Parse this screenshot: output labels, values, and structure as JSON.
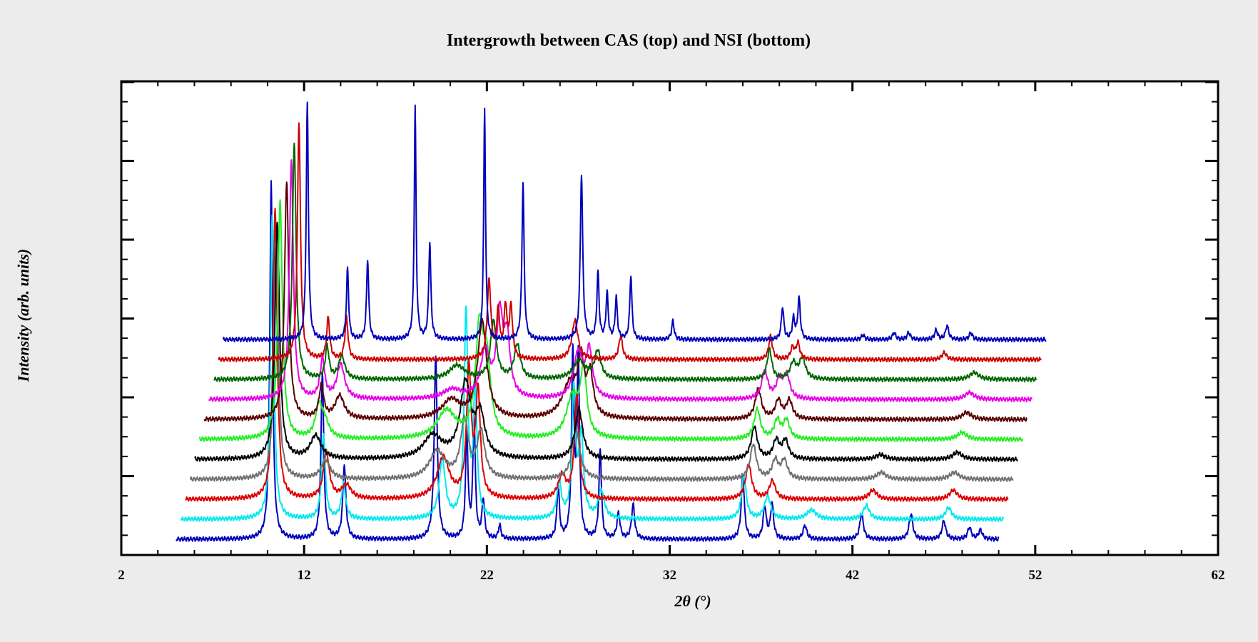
{
  "chart_data": {
    "type": "line",
    "title": "Intergrowth between CAS (top) and NSI (bottom)",
    "xlabel": "2θ (°)",
    "ylabel": "Intensity (arb. units)",
    "xlim": [
      2,
      62
    ],
    "xticks": [
      2,
      12,
      22,
      32,
      42,
      52,
      62
    ],
    "xtick_labels": [
      "2",
      "12",
      "22",
      "32",
      "42",
      "52",
      "62"
    ],
    "y_tick_labels_shown": false,
    "grid": false,
    "legend": "none",
    "plot_style": "stacked patterns, each offset upward and shifted right",
    "pattern_range_2theta": [
      5,
      50
    ],
    "series": [
      {
        "color": "#0000bb",
        "offset": 0,
        "x_shift": 0,
        "peaks": [
          {
            "x": 10.2,
            "h": 1.55,
            "w": 0.09
          },
          {
            "x": 13.0,
            "h": 0.73,
            "w": 0.09
          },
          {
            "x": 14.2,
            "h": 0.32,
            "w": 0.1
          },
          {
            "x": 19.2,
            "h": 0.79,
            "w": 0.1
          },
          {
            "x": 20.9,
            "h": 0.47,
            "w": 0.08
          },
          {
            "x": 21.3,
            "h": 0.52,
            "w": 0.08
          },
          {
            "x": 21.8,
            "h": 0.17,
            "w": 0.08
          },
          {
            "x": 22.7,
            "h": 0.06,
            "w": 0.08
          },
          {
            "x": 25.9,
            "h": 0.23,
            "w": 0.08
          },
          {
            "x": 26.7,
            "h": 0.8,
            "w": 0.08
          },
          {
            "x": 27.0,
            "h": 0.78,
            "w": 0.08
          },
          {
            "x": 28.2,
            "h": 0.39,
            "w": 0.08
          },
          {
            "x": 29.2,
            "h": 0.11,
            "w": 0.1
          },
          {
            "x": 30.0,
            "h": 0.15,
            "w": 0.1
          },
          {
            "x": 36.0,
            "h": 0.28,
            "w": 0.1
          },
          {
            "x": 37.2,
            "h": 0.14,
            "w": 0.1
          },
          {
            "x": 37.6,
            "h": 0.15,
            "w": 0.1
          },
          {
            "x": 39.4,
            "h": 0.06,
            "w": 0.12
          },
          {
            "x": 42.5,
            "h": 0.11,
            "w": 0.12
          },
          {
            "x": 45.2,
            "h": 0.11,
            "w": 0.12
          },
          {
            "x": 47.0,
            "h": 0.08,
            "w": 0.12
          },
          {
            "x": 48.4,
            "h": 0.05,
            "w": 0.12
          },
          {
            "x": 49.0,
            "h": 0.04,
            "w": 0.12
          }
        ]
      },
      {
        "color": "#00e8f0",
        "offset": 0.25,
        "x_shift": 0.5,
        "peaks": [
          {
            "x": 10.0,
            "h": 1.32,
            "w": 0.11
          },
          {
            "x": 12.8,
            "h": 0.37,
            "w": 0.12
          },
          {
            "x": 13.9,
            "h": 0.15,
            "w": 0.14
          },
          {
            "x": 19.3,
            "h": 0.26,
            "w": 0.2
          },
          {
            "x": 20.6,
            "h": 0.9,
            "w": 0.12
          },
          {
            "x": 21.1,
            "h": 0.55,
            "w": 0.12
          },
          {
            "x": 25.7,
            "h": 0.15,
            "w": 0.15
          },
          {
            "x": 26.5,
            "h": 0.55,
            "w": 0.12
          },
          {
            "x": 26.9,
            "h": 0.35,
            "w": 0.15
          },
          {
            "x": 28.0,
            "h": 0.12,
            "w": 0.2
          },
          {
            "x": 35.8,
            "h": 0.19,
            "w": 0.15
          },
          {
            "x": 37.1,
            "h": 0.1,
            "w": 0.2
          },
          {
            "x": 39.5,
            "h": 0.04,
            "w": 0.3
          },
          {
            "x": 42.5,
            "h": 0.06,
            "w": 0.2
          },
          {
            "x": 47.0,
            "h": 0.05,
            "w": 0.2
          }
        ]
      },
      {
        "color": "#dd0000",
        "offset": 0.5,
        "x_shift": 1.0,
        "peaks": [
          {
            "x": 9.9,
            "h": 1.27,
            "w": 0.13
          },
          {
            "x": 12.7,
            "h": 0.2,
            "w": 0.2
          },
          {
            "x": 13.8,
            "h": 0.06,
            "w": 0.3
          },
          {
            "x": 19.1,
            "h": 0.18,
            "w": 0.4
          },
          {
            "x": 20.5,
            "h": 0.55,
            "w": 0.15
          },
          {
            "x": 21.0,
            "h": 0.45,
            "w": 0.15
          },
          {
            "x": 25.6,
            "h": 0.1,
            "w": 0.25
          },
          {
            "x": 26.4,
            "h": 0.45,
            "w": 0.15
          },
          {
            "x": 35.8,
            "h": 0.15,
            "w": 0.2
          },
          {
            "x": 37.1,
            "h": 0.08,
            "w": 0.2
          },
          {
            "x": 42.6,
            "h": 0.04,
            "w": 0.25
          },
          {
            "x": 47.0,
            "h": 0.04,
            "w": 0.25
          }
        ]
      },
      {
        "color": "#707070",
        "offset": 0.75,
        "x_shift": 1.5,
        "peaks": [
          {
            "x": 9.7,
            "h": 1.03,
            "w": 0.14
          },
          {
            "x": 12.4,
            "h": 0.08,
            "w": 0.3
          },
          {
            "x": 18.5,
            "h": 0.12,
            "w": 0.5
          },
          {
            "x": 20.0,
            "h": 0.25,
            "w": 0.25
          },
          {
            "x": 20.9,
            "h": 0.2,
            "w": 0.25
          },
          {
            "x": 26.1,
            "h": 0.22,
            "w": 0.25
          },
          {
            "x": 35.8,
            "h": 0.15,
            "w": 0.2
          },
          {
            "x": 37.0,
            "h": 0.08,
            "w": 0.2
          },
          {
            "x": 37.5,
            "h": 0.08,
            "w": 0.2
          },
          {
            "x": 42.8,
            "h": 0.03,
            "w": 0.3
          },
          {
            "x": 46.8,
            "h": 0.03,
            "w": 0.3
          }
        ]
      },
      {
        "color": "#000000",
        "offset": 1.0,
        "x_shift": 2.0,
        "peaks": [
          {
            "x": 9.5,
            "h": 1.03,
            "w": 0.15
          },
          {
            "x": 11.6,
            "h": 0.1,
            "w": 0.35
          },
          {
            "x": 18.0,
            "h": 0.1,
            "w": 0.6
          },
          {
            "x": 19.8,
            "h": 0.32,
            "w": 0.35
          },
          {
            "x": 20.6,
            "h": 0.18,
            "w": 0.3
          },
          {
            "x": 26.0,
            "h": 0.22,
            "w": 0.25
          },
          {
            "x": 35.6,
            "h": 0.14,
            "w": 0.2
          },
          {
            "x": 36.8,
            "h": 0.08,
            "w": 0.2
          },
          {
            "x": 37.3,
            "h": 0.08,
            "w": 0.2
          },
          {
            "x": 42.5,
            "h": 0.02,
            "w": 0.3
          },
          {
            "x": 46.7,
            "h": 0.03,
            "w": 0.3
          }
        ]
      },
      {
        "color": "#22ee22",
        "offset": 1.25,
        "x_shift": 2.5,
        "peaks": [
          {
            "x": 9.4,
            "h": 1.03,
            "w": 0.15
          },
          {
            "x": 11.5,
            "h": 0.12,
            "w": 0.2
          },
          {
            "x": 11.8,
            "h": 0.08,
            "w": 0.3
          },
          {
            "x": 18.5,
            "h": 0.12,
            "w": 0.6
          },
          {
            "x": 20.3,
            "h": 0.45,
            "w": 0.25
          },
          {
            "x": 20.7,
            "h": 0.3,
            "w": 0.25
          },
          {
            "x": 25.4,
            "h": 0.18,
            "w": 0.4
          },
          {
            "x": 26.0,
            "h": 0.28,
            "w": 0.2
          },
          {
            "x": 35.5,
            "h": 0.13,
            "w": 0.2
          },
          {
            "x": 36.6,
            "h": 0.08,
            "w": 0.2
          },
          {
            "x": 37.1,
            "h": 0.08,
            "w": 0.2
          },
          {
            "x": 46.7,
            "h": 0.03,
            "w": 0.3
          }
        ]
      },
      {
        "color": "#5a0000",
        "offset": 1.5,
        "x_shift": 3.0,
        "peaks": [
          {
            "x": 9.5,
            "h": 1.03,
            "w": 0.14
          },
          {
            "x": 11.4,
            "h": 0.14,
            "w": 0.15
          },
          {
            "x": 12.4,
            "h": 0.1,
            "w": 0.3
          },
          {
            "x": 18.5,
            "h": 0.08,
            "w": 0.6
          },
          {
            "x": 20.2,
            "h": 0.42,
            "w": 0.3
          },
          {
            "x": 25.0,
            "h": 0.15,
            "w": 0.5
          },
          {
            "x": 25.6,
            "h": 0.22,
            "w": 0.2
          },
          {
            "x": 26.1,
            "h": 0.18,
            "w": 0.2
          },
          {
            "x": 35.3,
            "h": 0.13,
            "w": 0.2
          },
          {
            "x": 36.4,
            "h": 0.08,
            "w": 0.2
          },
          {
            "x": 37.0,
            "h": 0.08,
            "w": 0.2
          },
          {
            "x": 46.7,
            "h": 0.03,
            "w": 0.3
          }
        ]
      },
      {
        "color": "#e800e8",
        "offset": 1.75,
        "x_shift": 3.5,
        "peaks": [
          {
            "x": 9.5,
            "h": 1.03,
            "w": 0.13
          },
          {
            "x": 11.2,
            "h": 0.17,
            "w": 0.15
          },
          {
            "x": 12.2,
            "h": 0.15,
            "w": 0.25
          },
          {
            "x": 18.3,
            "h": 0.04,
            "w": 0.6
          },
          {
            "x": 20.1,
            "h": 0.2,
            "w": 0.3
          },
          {
            "x": 20.9,
            "h": 0.35,
            "w": 0.2
          },
          {
            "x": 21.3,
            "h": 0.25,
            "w": 0.2
          },
          {
            "x": 25.2,
            "h": 0.2,
            "w": 0.3
          },
          {
            "x": 25.8,
            "h": 0.2,
            "w": 0.2
          },
          {
            "x": 35.4,
            "h": 0.12,
            "w": 0.2
          },
          {
            "x": 36.2,
            "h": 0.08,
            "w": 0.2
          },
          {
            "x": 36.6,
            "h": 0.1,
            "w": 0.2
          },
          {
            "x": 46.6,
            "h": 0.03,
            "w": 0.3
          }
        ]
      },
      {
        "color": "#006600",
        "offset": 2.0,
        "x_shift": 4.0,
        "peaks": [
          {
            "x": 9.4,
            "h": 1.03,
            "w": 0.12
          },
          {
            "x": 11.2,
            "h": 0.14,
            "w": 0.12
          },
          {
            "x": 12.0,
            "h": 0.1,
            "w": 0.2
          },
          {
            "x": 18.3,
            "h": 0.06,
            "w": 0.5
          },
          {
            "x": 20.3,
            "h": 0.25,
            "w": 0.2
          },
          {
            "x": 21.6,
            "h": 0.15,
            "w": 0.2
          },
          {
            "x": 25.0,
            "h": 0.08,
            "w": 0.4
          },
          {
            "x": 26.0,
            "h": 0.12,
            "w": 0.2
          },
          {
            "x": 35.4,
            "h": 0.13,
            "w": 0.15
          },
          {
            "x": 36.7,
            "h": 0.07,
            "w": 0.2
          },
          {
            "x": 37.2,
            "h": 0.09,
            "w": 0.2
          },
          {
            "x": 46.6,
            "h": 0.03,
            "w": 0.3
          }
        ]
      },
      {
        "color": "#cc0000",
        "offset": 2.25,
        "x_shift": 4.5,
        "peaks": [
          {
            "x": 9.4,
            "h": 1.03,
            "w": 0.1
          },
          {
            "x": 11.0,
            "h": 0.18,
            "w": 0.1
          },
          {
            "x": 12.0,
            "h": 0.18,
            "w": 0.1
          },
          {
            "x": 19.8,
            "h": 0.34,
            "w": 0.12
          },
          {
            "x": 20.3,
            "h": 0.2,
            "w": 0.1
          },
          {
            "x": 20.7,
            "h": 0.22,
            "w": 0.1
          },
          {
            "x": 21.0,
            "h": 0.22,
            "w": 0.1
          },
          {
            "x": 24.5,
            "h": 0.17,
            "w": 0.2
          },
          {
            "x": 27.0,
            "h": 0.1,
            "w": 0.12
          },
          {
            "x": 35.2,
            "h": 0.1,
            "w": 0.12
          },
          {
            "x": 36.4,
            "h": 0.05,
            "w": 0.12
          },
          {
            "x": 36.7,
            "h": 0.07,
            "w": 0.12
          },
          {
            "x": 44.7,
            "h": 0.03,
            "w": 0.15
          }
        ]
      },
      {
        "color": "#0000bb",
        "offset": 2.5,
        "x_shift": 5.0,
        "peaks": [
          {
            "x": 9.6,
            "h": 1.03,
            "w": 0.07
          },
          {
            "x": 11.8,
            "h": 0.31,
            "w": 0.07
          },
          {
            "x": 12.9,
            "h": 0.35,
            "w": 0.07
          },
          {
            "x": 15.5,
            "h": 1.01,
            "w": 0.06
          },
          {
            "x": 16.3,
            "h": 0.42,
            "w": 0.07
          },
          {
            "x": 19.3,
            "h": 1.01,
            "w": 0.06
          },
          {
            "x": 21.4,
            "h": 0.68,
            "w": 0.07
          },
          {
            "x": 24.6,
            "h": 0.72,
            "w": 0.08
          },
          {
            "x": 25.5,
            "h": 0.29,
            "w": 0.07
          },
          {
            "x": 26.0,
            "h": 0.2,
            "w": 0.07
          },
          {
            "x": 26.5,
            "h": 0.18,
            "w": 0.07
          },
          {
            "x": 27.3,
            "h": 0.28,
            "w": 0.07
          },
          {
            "x": 29.6,
            "h": 0.08,
            "w": 0.08
          },
          {
            "x": 35.6,
            "h": 0.14,
            "w": 0.08
          },
          {
            "x": 36.2,
            "h": 0.09,
            "w": 0.08
          },
          {
            "x": 36.5,
            "h": 0.18,
            "w": 0.08
          },
          {
            "x": 40.0,
            "h": 0.02,
            "w": 0.1
          },
          {
            "x": 41.7,
            "h": 0.03,
            "w": 0.1
          },
          {
            "x": 42.5,
            "h": 0.03,
            "w": 0.1
          },
          {
            "x": 44.0,
            "h": 0.04,
            "w": 0.1
          },
          {
            "x": 44.6,
            "h": 0.06,
            "w": 0.1
          },
          {
            "x": 45.9,
            "h": 0.03,
            "w": 0.1
          }
        ]
      }
    ]
  }
}
